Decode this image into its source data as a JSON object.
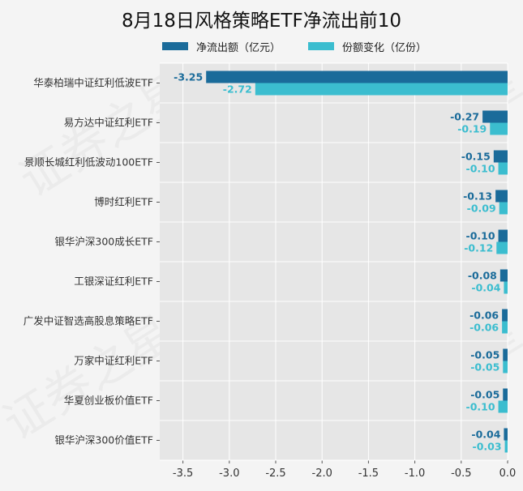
{
  "chart_data": {
    "type": "bar",
    "orientation": "horizontal",
    "title": "8月18日风格策略ETF净流出前10",
    "categories": [
      "华泰柏瑞中证红利低波ETF",
      "易方达中证红利ETF",
      "景顺长城红利低波动100ETF",
      "博时红利ETF",
      "银华沪深300成长ETF",
      "工银深证红利ETF",
      "广发中证智选高股息策略ETF",
      "万家中证红利ETF",
      "华夏创业板价值ETF",
      "银华沪深300价值ETF"
    ],
    "series": [
      {
        "name": "净流出额（亿元）",
        "color": "#1a6b9a",
        "values": [
          -3.25,
          -0.27,
          -0.15,
          -0.13,
          -0.1,
          -0.08,
          -0.06,
          -0.05,
          -0.05,
          -0.04
        ],
        "labels": [
          "-3.25",
          "-0.27",
          "-0.15",
          "-0.13",
          "-0.10",
          "-0.08",
          "-0.06",
          "-0.05",
          "-0.05",
          "-0.04"
        ]
      },
      {
        "name": "份额变化（亿份）",
        "color": "#3bbdcf",
        "values": [
          -2.72,
          -0.19,
          -0.1,
          -0.09,
          -0.12,
          -0.04,
          -0.06,
          -0.05,
          -0.1,
          -0.03
        ],
        "labels": [
          "-2.72",
          "-0.19",
          "-0.10",
          "-0.09",
          "-0.12",
          "-0.04",
          "-0.06",
          "-0.05",
          "-0.10",
          "-0.03"
        ]
      }
    ],
    "xlim": [
      -3.75,
      0.0
    ],
    "xticks": [
      -3.5,
      -3.0,
      -2.5,
      -2.0,
      -1.5,
      -1.0,
      -0.5,
      0.0
    ],
    "xtick_labels": [
      "-3.5",
      "-3.0",
      "-2.5",
      "-2.0",
      "-1.5",
      "-1.0",
      "-0.5",
      "0.0"
    ],
    "grid": true,
    "legend_position": "top-center",
    "watermark": "证券之星"
  }
}
